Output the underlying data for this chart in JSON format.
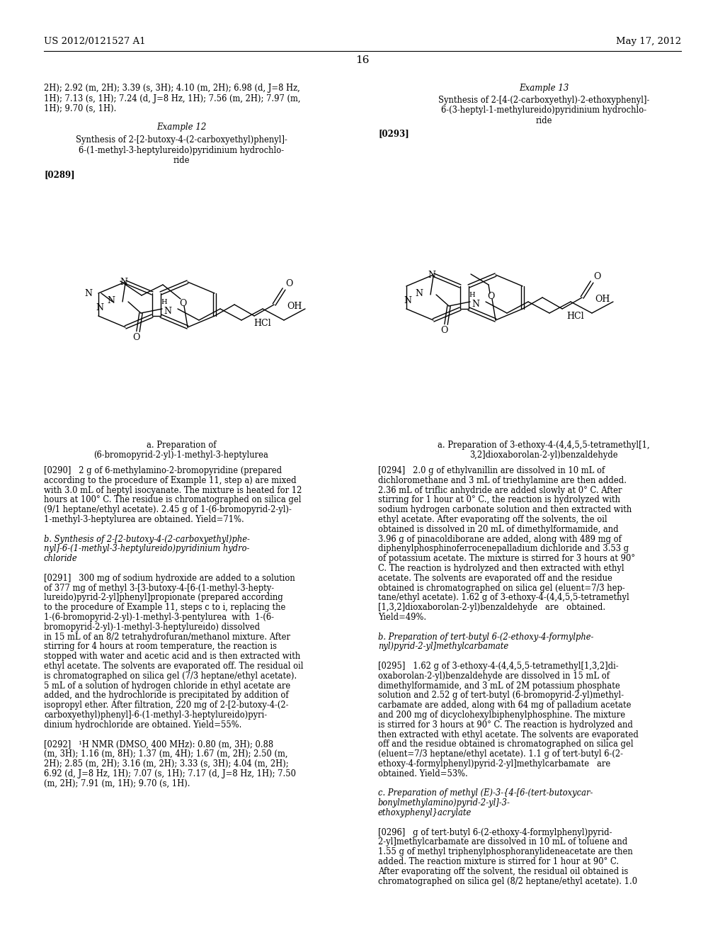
{
  "page_header_left": "US 2012/0121527 A1",
  "page_header_right": "May 17, 2012",
  "page_number": "16",
  "bg": "#ffffff"
}
